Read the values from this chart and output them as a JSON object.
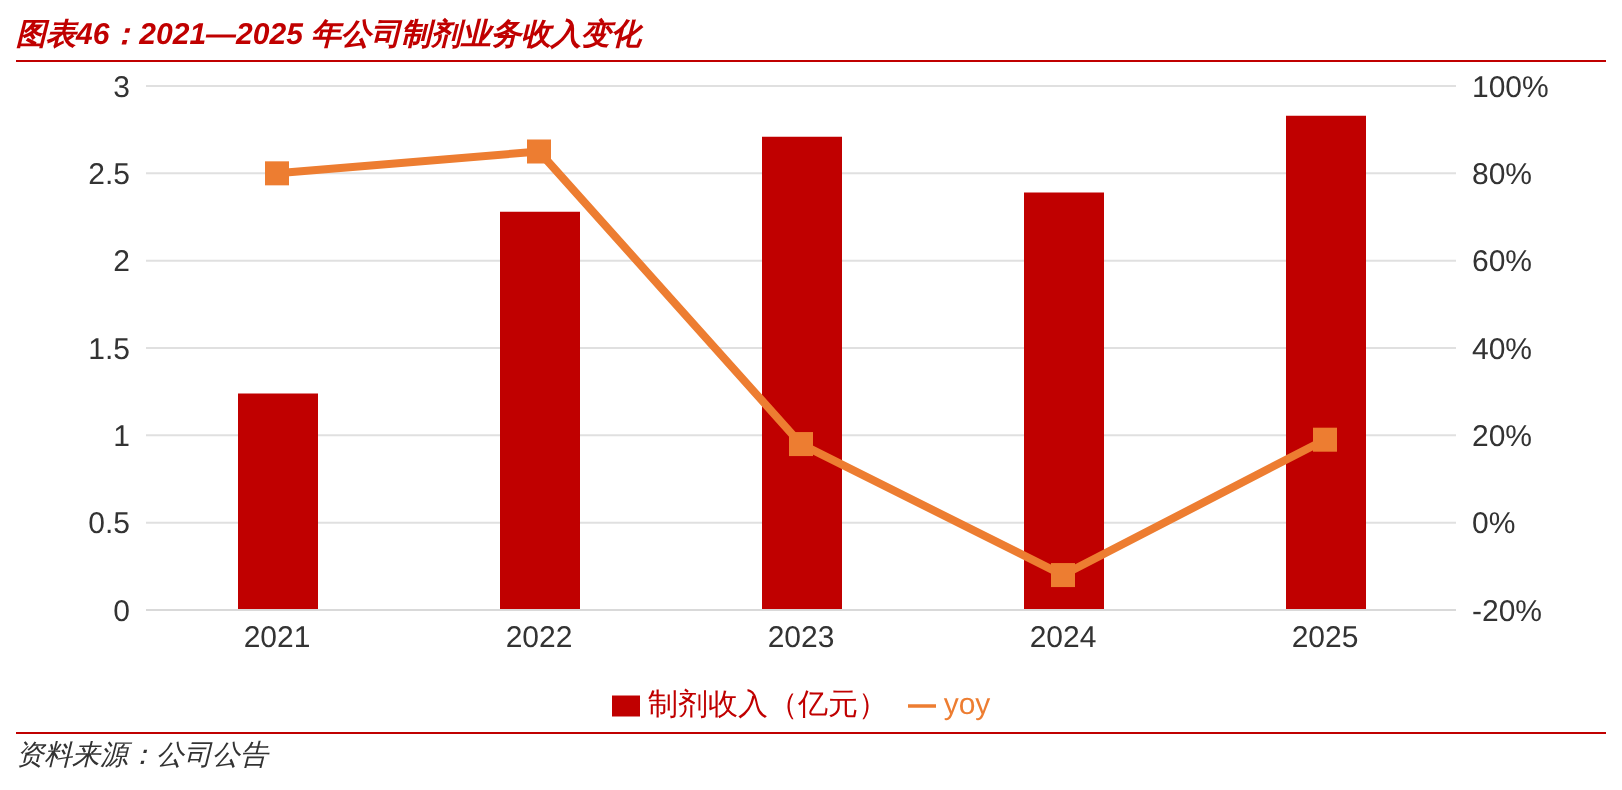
{
  "chart_data": {
    "type": "bar",
    "title": "图表46：2021—2025 年公司制剂业务收入变化",
    "categories": [
      "2021",
      "2022",
      "2023",
      "2024",
      "2025"
    ],
    "series": [
      {
        "name": "制剂收入（亿元）",
        "color": "#c00000",
        "values": [
          1.24,
          2.28,
          2.71,
          2.39,
          2.83
        ]
      },
      {
        "name": "yoy",
        "type": "line",
        "axis": "y2",
        "color": "#ed7d31",
        "values": [
          80,
          85,
          18,
          -12,
          19
        ]
      }
    ],
    "ylim": [
      0,
      3
    ],
    "yticks": [
      0,
      0.5,
      1,
      1.5,
      2,
      2.5,
      3
    ],
    "y2lim": [
      -20,
      100
    ],
    "y2ticks": [
      {
        "value": -20,
        "label": "-20%"
      },
      {
        "value": 0,
        "label": "0%"
      },
      {
        "value": 20,
        "label": "20%"
      },
      {
        "value": 40,
        "label": "40%"
      },
      {
        "value": 60,
        "label": "60%"
      },
      {
        "value": 80,
        "label": "80%"
      },
      {
        "value": 100,
        "label": "100%"
      }
    ],
    "grid": "y",
    "legend": "bottom",
    "marker": "square",
    "line_style": "solid",
    "annotations": [
      "资料来源：公司公告"
    ]
  }
}
